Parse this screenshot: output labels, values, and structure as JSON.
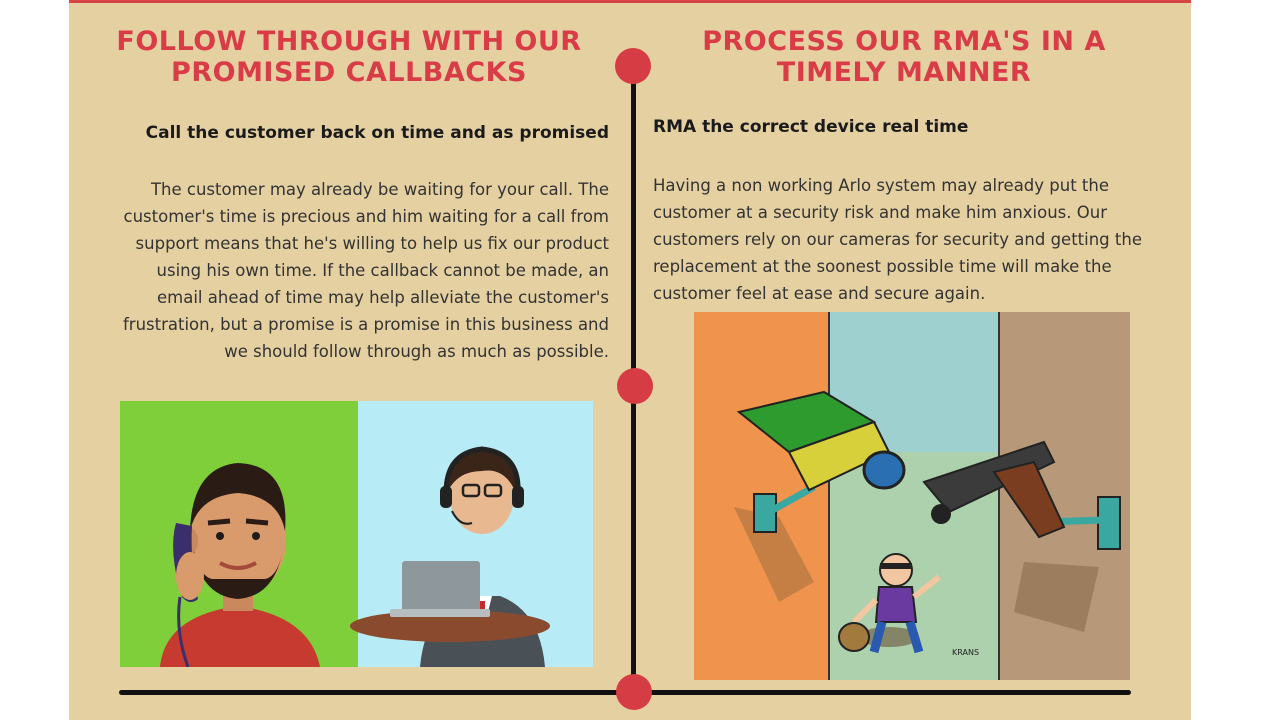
{
  "left": {
    "heading": "FOLLOW THROUGH WITH OUR PROMISED CALLBACKS",
    "subheading": "Call the customer back on time and as promised",
    "body": "The customer may already be waiting for your call. The customer's time is precious and him waiting for a call from support means that he's willing to help us fix our product using his own time. If the callback cannot be made, an email ahead of time may help alleviate the customer's frustration, but a promise is a promise in this business and we should follow through as much as possible."
  },
  "right": {
    "heading": "PROCESS OUR RMA'S IN A TIMELY MANNER",
    "subheading": "RMA the correct device real time",
    "body": "Having a non working Arlo system may already put the customer at a security risk and make him anxious. Our customers rely on our cameras for security and getting the replacement at the soonest possible time will make the customer feel at ease and secure again.",
    "illustration_signature": "KRANS"
  },
  "colors": {
    "background": "#e5d0a2",
    "heading": "#d93c47",
    "timeline": "#111111",
    "timeline_dot": "#d63c44"
  },
  "icons": [
    "customer-phone-illustration",
    "support-agent-illustration",
    "security-camera-illustration"
  ]
}
